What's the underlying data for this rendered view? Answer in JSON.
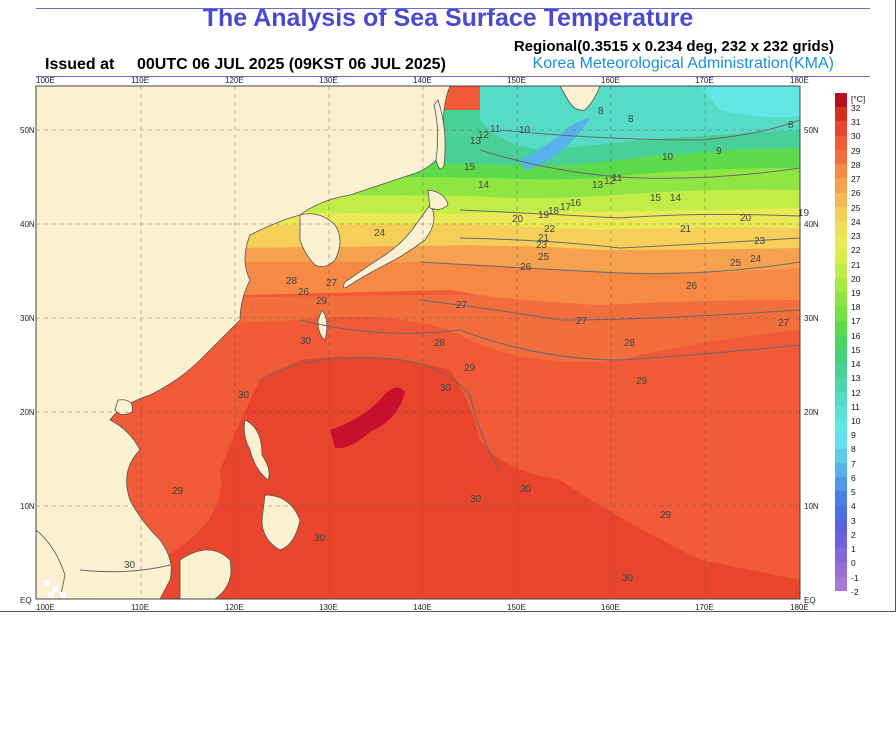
{
  "header": {
    "title": "The Analysis of Sea Surface Temperature",
    "issued_label": "Issued at",
    "issued_value": "00UTC 06 JUL 2025 (09KST 06 JUL 2025)",
    "regional": "Regional(0.3515 x 0.234 deg, 232 x 232 grids)",
    "agency": "Korea Meteorological Administration(KMA)"
  },
  "map": {
    "lon_labels": [
      "100E",
      "110E",
      "120E",
      "130E",
      "140E",
      "150E",
      "160E",
      "170E",
      "180E"
    ],
    "lat_labels": [
      "EQ",
      "10N",
      "20N",
      "30N",
      "40N",
      "50N"
    ],
    "contour_labels": [
      {
        "text": "8"
      },
      {
        "text": "8"
      },
      {
        "text": "8"
      },
      {
        "text": "9"
      },
      {
        "text": "10"
      },
      {
        "text": "10"
      },
      {
        "text": "11"
      },
      {
        "text": "12"
      },
      {
        "text": "13"
      },
      {
        "text": "14"
      },
      {
        "text": "15"
      },
      {
        "text": "15"
      },
      {
        "text": "14"
      },
      {
        "text": "13"
      },
      {
        "text": "12"
      },
      {
        "text": "11"
      },
      {
        "text": "16"
      },
      {
        "text": "17"
      },
      {
        "text": "18"
      },
      {
        "text": "19"
      },
      {
        "text": "20"
      },
      {
        "text": "19"
      },
      {
        "text": "20"
      },
      {
        "text": "21"
      },
      {
        "text": "22"
      },
      {
        "text": "21"
      },
      {
        "text": "23"
      },
      {
        "text": "24"
      },
      {
        "text": "23"
      },
      {
        "text": "24"
      },
      {
        "text": "25"
      },
      {
        "text": "25"
      },
      {
        "text": "26"
      },
      {
        "text": "26"
      },
      {
        "text": "26"
      },
      {
        "text": "27"
      },
      {
        "text": "27"
      },
      {
        "text": "27"
      },
      {
        "text": "27"
      },
      {
        "text": "28"
      },
      {
        "text": "28"
      },
      {
        "text": "29"
      },
      {
        "text": "29"
      },
      {
        "text": "29"
      },
      {
        "text": "29"
      },
      {
        "text": "30"
      },
      {
        "text": "30"
      },
      {
        "text": "30"
      },
      {
        "text": "30"
      },
      {
        "text": "30"
      },
      {
        "text": "30"
      },
      {
        "text": "30"
      },
      {
        "text": "29"
      },
      {
        "text": "30"
      },
      {
        "text": "28"
      }
    ]
  },
  "colorbar": {
    "unit": "[°C]",
    "labels": [
      "32",
      "31",
      "30",
      "29",
      "28",
      "27",
      "26",
      "25",
      "24",
      "23",
      "22",
      "21",
      "20",
      "19",
      "18",
      "17",
      "16",
      "15",
      "14",
      "13",
      "12",
      "11",
      "10",
      "9",
      "8",
      "7",
      "6",
      "5",
      "4",
      "3",
      "2",
      "1",
      "0",
      "-1",
      "-2"
    ],
    "colors": [
      "#b80f1e",
      "#d32f1f",
      "#e9442c",
      "#f05a36",
      "#f26e3c",
      "#f68a45",
      "#f6a14f",
      "#f7b857",
      "#f5cf58",
      "#f2de58",
      "#eaea56",
      "#d8ee4f",
      "#c0ed48",
      "#a8ea44",
      "#8fe642",
      "#74e144",
      "#5cda4c",
      "#4bd460",
      "#46d078",
      "#48d096",
      "#4fd4b0",
      "#56dbc6",
      "#5ee2d8",
      "#63e7e6",
      "#66e0ee",
      "#5fcaec",
      "#58b2ea",
      "#5199e6",
      "#4b80e2",
      "#4f6ee0",
      "#5a62dc",
      "#6e62db",
      "#8268d8",
      "#9670d8",
      "#a878d6"
    ]
  }
}
